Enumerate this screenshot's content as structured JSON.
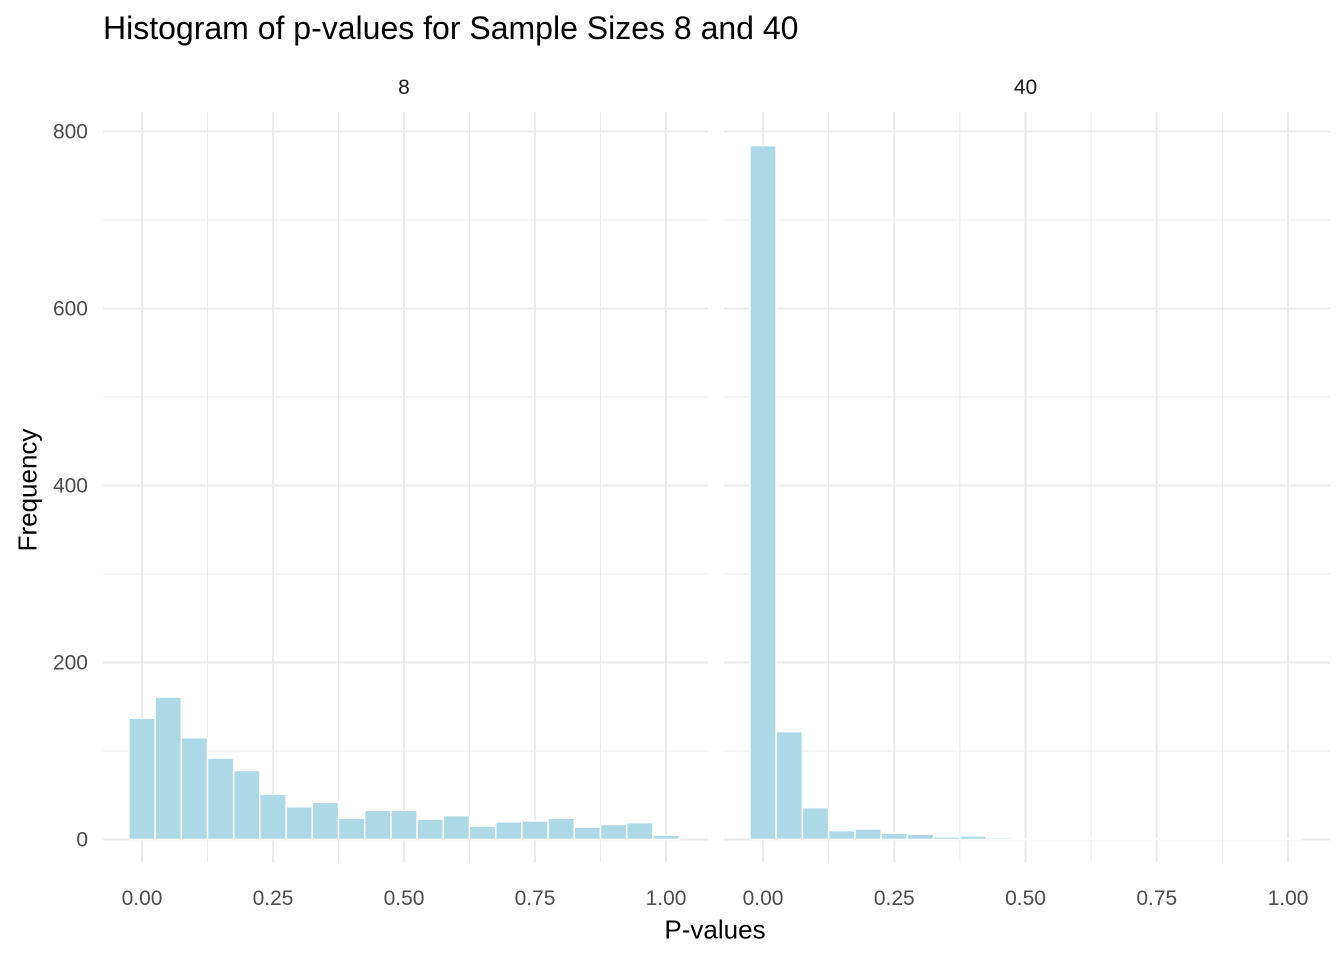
{
  "chart_data": {
    "type": "bar",
    "title": "Histogram of p-values for Sample Sizes 8 and 40",
    "xlabel": "P-values",
    "ylabel": "Frequency",
    "bar_color": "#ADD8E6",
    "bar_outline": "#ffffff",
    "grid_color": "#EBEBEB",
    "xlim": [
      -0.025,
      1.025
    ],
    "ylim": [
      0,
      800
    ],
    "x_ticks": [
      "0.00",
      "0.25",
      "0.50",
      "0.75",
      "1.00"
    ],
    "y_ticks": [
      "0",
      "200",
      "400",
      "600",
      "800"
    ],
    "bin_width": 0.05,
    "bin_centers": [
      0,
      0.05,
      0.1,
      0.15,
      0.2,
      0.25,
      0.3,
      0.35,
      0.4,
      0.45,
      0.5,
      0.55,
      0.6,
      0.65,
      0.7,
      0.75,
      0.8,
      0.85,
      0.9,
      0.95,
      1.0
    ],
    "panels": [
      {
        "label": "8",
        "values": [
          137,
          161,
          115,
          92,
          78,
          51,
          37,
          42,
          24,
          33,
          33,
          23,
          27,
          15,
          20,
          21,
          24,
          14,
          17,
          19,
          5
        ]
      },
      {
        "label": "40",
        "values": [
          784,
          122,
          36,
          10,
          12,
          7,
          6,
          3,
          4,
          2,
          1,
          0,
          0,
          0,
          0,
          0,
          0,
          0,
          0,
          0,
          0
        ]
      }
    ]
  }
}
